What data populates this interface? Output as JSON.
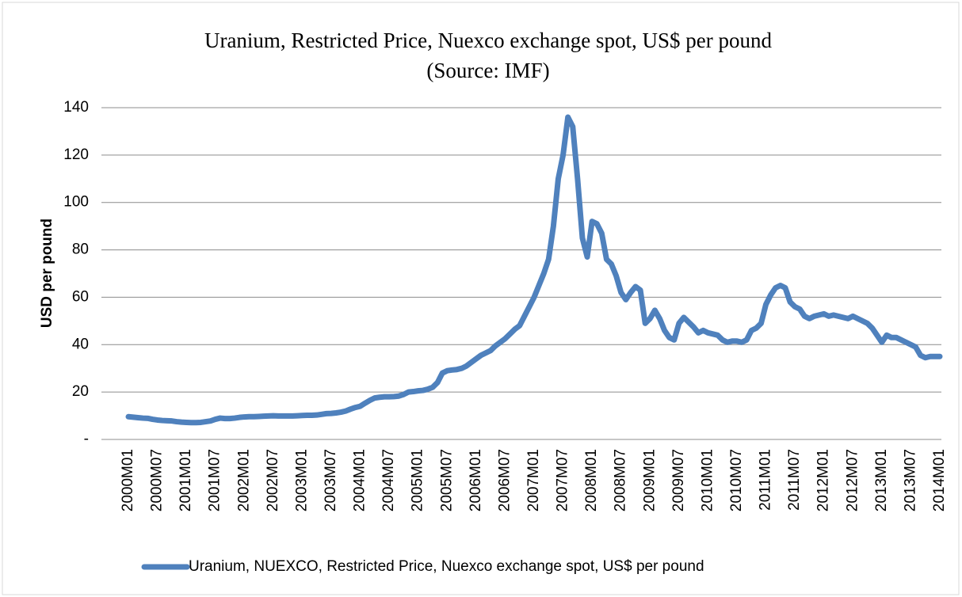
{
  "chart_data": {
    "type": "line",
    "title": "Uranium, Restricted Price, Nuexco exchange spot, US$ per pound",
    "subtitle": "(Source: IMF)",
    "y_label": "USD per pound",
    "categories": [
      "2000M01",
      null,
      null,
      null,
      null,
      null,
      "2000M07",
      null,
      null,
      null,
      null,
      null,
      "2001M01",
      null,
      null,
      null,
      null,
      null,
      "2001M07",
      null,
      null,
      null,
      null,
      null,
      "2002M01",
      null,
      null,
      null,
      null,
      null,
      "2002M07",
      null,
      null,
      null,
      null,
      null,
      "2003M01",
      null,
      null,
      null,
      null,
      null,
      "2003M07",
      null,
      null,
      null,
      null,
      null,
      "2004M01",
      null,
      null,
      null,
      null,
      null,
      "2004M07",
      null,
      null,
      null,
      null,
      null,
      "2005M01",
      null,
      null,
      null,
      null,
      null,
      "2005M07",
      null,
      null,
      null,
      null,
      null,
      "2006M01",
      null,
      null,
      null,
      null,
      null,
      "2006M07",
      null,
      null,
      null,
      null,
      null,
      "2007M01",
      null,
      null,
      null,
      null,
      null,
      "2007M07",
      null,
      null,
      null,
      null,
      null,
      "2008M01",
      null,
      null,
      null,
      null,
      null,
      "2008M07",
      null,
      null,
      null,
      null,
      null,
      "2009M01",
      null,
      null,
      null,
      null,
      null,
      "2009M07",
      null,
      null,
      null,
      null,
      null,
      "2010M01",
      null,
      null,
      null,
      null,
      null,
      "2010M07",
      null,
      null,
      null,
      null,
      null,
      "2011M01",
      null,
      null,
      null,
      null,
      null,
      "2011M07",
      null,
      null,
      null,
      null,
      null,
      "2012M01",
      null,
      null,
      null,
      null,
      null,
      "2012M07",
      null,
      null,
      null,
      null,
      null,
      "2013M01",
      null,
      null,
      null,
      null,
      null,
      "2013M07",
      null,
      null,
      null,
      null,
      null,
      "2014M01"
    ],
    "series": [
      {
        "name": "Uranium, NUEXCO, Restricted Price, Nuexco exchange spot, US$ per pound",
        "color": "#4f81bd",
        "values": [
          9.6,
          9.4,
          9.2,
          9.0,
          8.9,
          8.5,
          8.2,
          8.0,
          7.9,
          7.8,
          7.5,
          7.3,
          7.2,
          7.1,
          7.1,
          7.2,
          7.5,
          7.8,
          8.5,
          9.0,
          8.8,
          8.8,
          9.0,
          9.3,
          9.5,
          9.6,
          9.6,
          9.7,
          9.8,
          9.9,
          10.0,
          9.9,
          9.9,
          9.9,
          9.9,
          10.0,
          10.1,
          10.2,
          10.2,
          10.3,
          10.6,
          10.9,
          11.0,
          11.2,
          11.5,
          12.0,
          12.8,
          13.5,
          14.0,
          15.3,
          16.5,
          17.5,
          17.8,
          18.0,
          18.0,
          18.1,
          18.3,
          19.0,
          20.0,
          20.2,
          20.5,
          20.7,
          21.2,
          22.0,
          24.0,
          28.0,
          29.0,
          29.3,
          29.5,
          30.0,
          31.0,
          32.5,
          34.0,
          35.5,
          36.5,
          37.5,
          39.5,
          41.0,
          42.5,
          44.5,
          46.5,
          48.0,
          52.0,
          56.0,
          60.0,
          65.0,
          70.0,
          76.0,
          90.0,
          110.0,
          120.0,
          136.0,
          132.0,
          110.0,
          85.0,
          77.0,
          92.0,
          91.0,
          87.0,
          76.0,
          74.0,
          69.0,
          62.0,
          59.0,
          62.0,
          64.5,
          63.0,
          49.0,
          51.0,
          54.5,
          51.0,
          46.0,
          43.0,
          42.0,
          49.0,
          51.5,
          49.5,
          47.5,
          45.0,
          46.0,
          45.0,
          44.5,
          44.0,
          42.0,
          41.0,
          41.5,
          41.5,
          41.0,
          42.0,
          46.0,
          47.0,
          49.0,
          57.0,
          61.0,
          64.0,
          65.0,
          64.0,
          58.0,
          56.0,
          55.0,
          52.0,
          51.0,
          52.0,
          52.5,
          53.0,
          52.0,
          52.5,
          52.0,
          51.5,
          51.0,
          52.0,
          51.0,
          50.0,
          49.0,
          47.0,
          44.0,
          41.0,
          44.0,
          43.0,
          43.0,
          42.0,
          41.0,
          40.0,
          39.0,
          35.5,
          34.5,
          35.0,
          35.0,
          35.0
        ]
      }
    ],
    "ylim": [
      0,
      140
    ],
    "yticks": [
      {
        "value": 0,
        "label": "-"
      },
      20,
      40,
      60,
      80,
      100,
      120,
      140
    ],
    "grid": true,
    "legend": "bottom"
  }
}
